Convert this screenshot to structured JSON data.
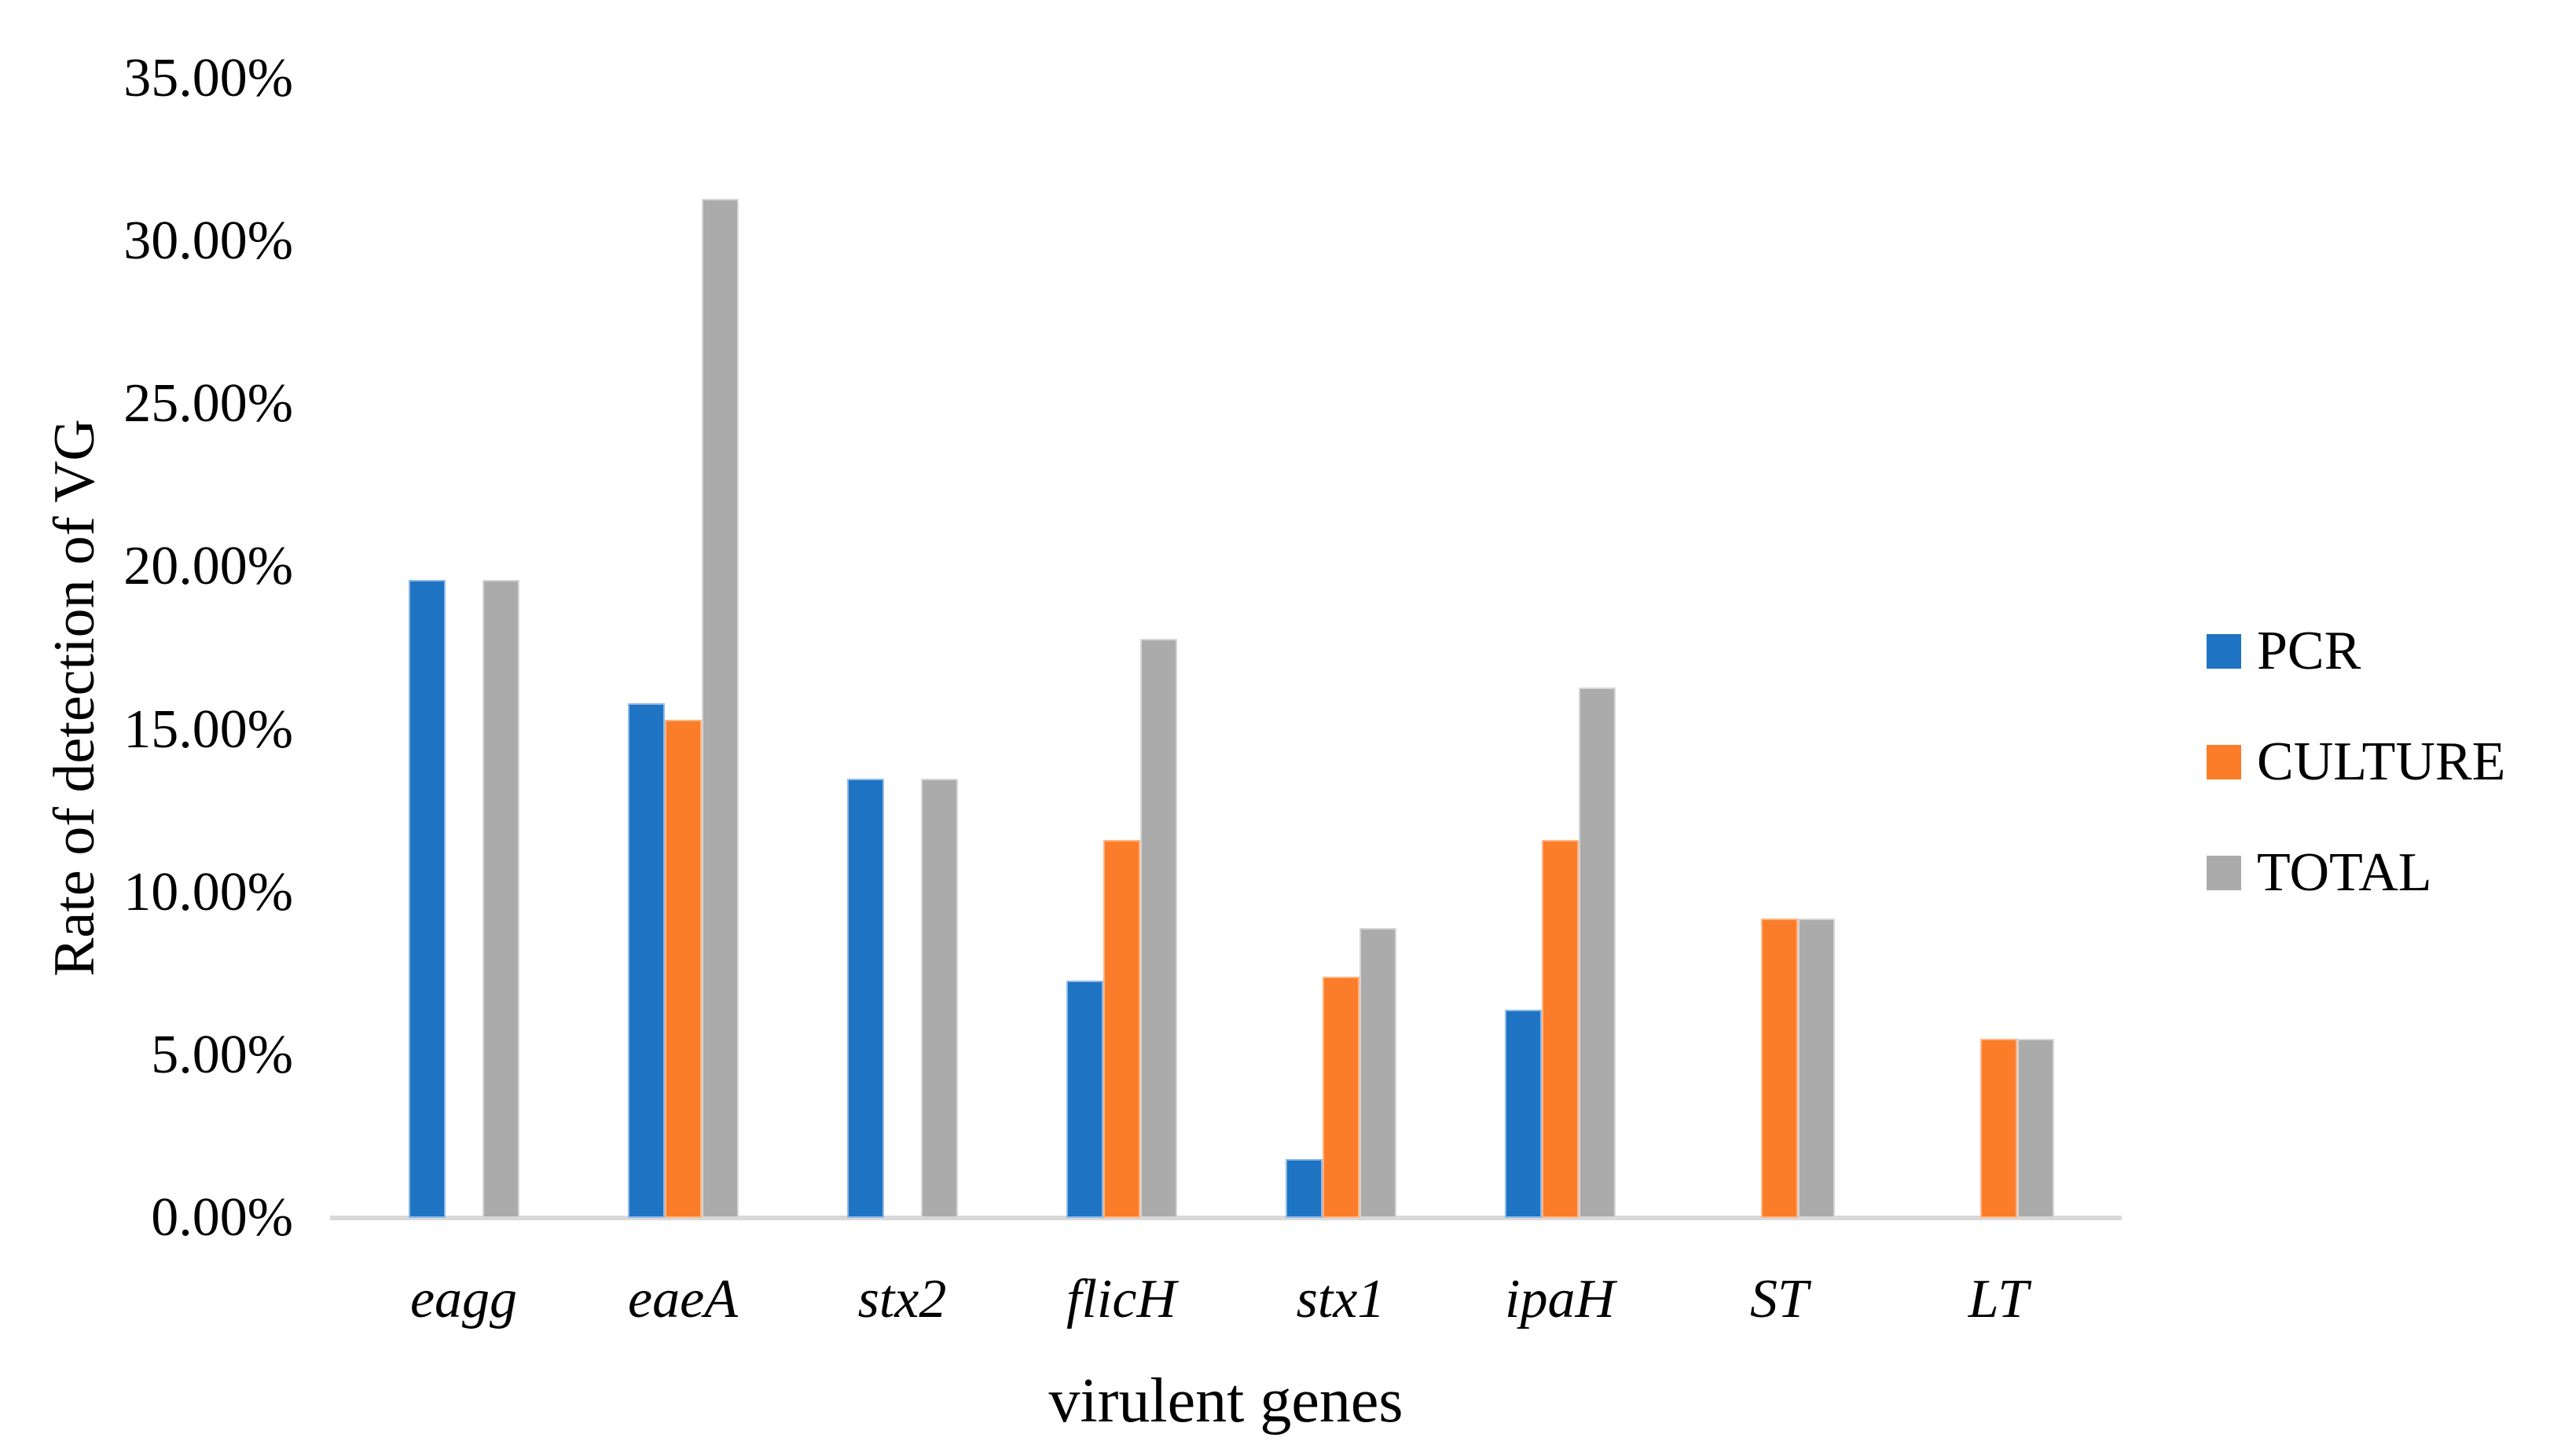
{
  "chart_data": {
    "type": "bar",
    "title": "",
    "categories": [
      "eagg",
      "eaeA",
      "stx2",
      "flicH",
      "stx1",
      "ipaH",
      "ST",
      "LT"
    ],
    "series": [
      {
        "name": "PCR",
        "color": "#1e73c2",
        "edge_color": "#8fb9e8",
        "values": [
          19.6,
          15.8,
          13.5,
          7.3,
          1.8,
          6.4,
          0,
          0
        ]
      },
      {
        "name": "CULTURE",
        "color": "#fb7d29",
        "edge_color": "#fdb583",
        "values": [
          0,
          15.3,
          0,
          11.6,
          7.4,
          11.6,
          9.2,
          5.5
        ]
      },
      {
        "name": "TOTAL",
        "color": "#ababab",
        "edge_color": "#d6d6d6",
        "values": [
          19.6,
          31.3,
          13.5,
          17.8,
          8.9,
          16.3,
          9.2,
          5.5
        ]
      }
    ],
    "xlabel": "virulent genes",
    "ylabel": "Rate of detection of VG",
    "ylim": [
      0,
      35
    ],
    "ytick_step": 5,
    "ytick_labels": [
      "0.00%",
      "5.00%",
      "10.00%",
      "15.00%",
      "20.00%",
      "25.00%",
      "30.00%",
      "35.00%"
    ],
    "legend_position": "right",
    "grid": false,
    "axis_line_color": "#d9d9d9",
    "text_color": "#000000",
    "background_color": "#ffffff"
  }
}
